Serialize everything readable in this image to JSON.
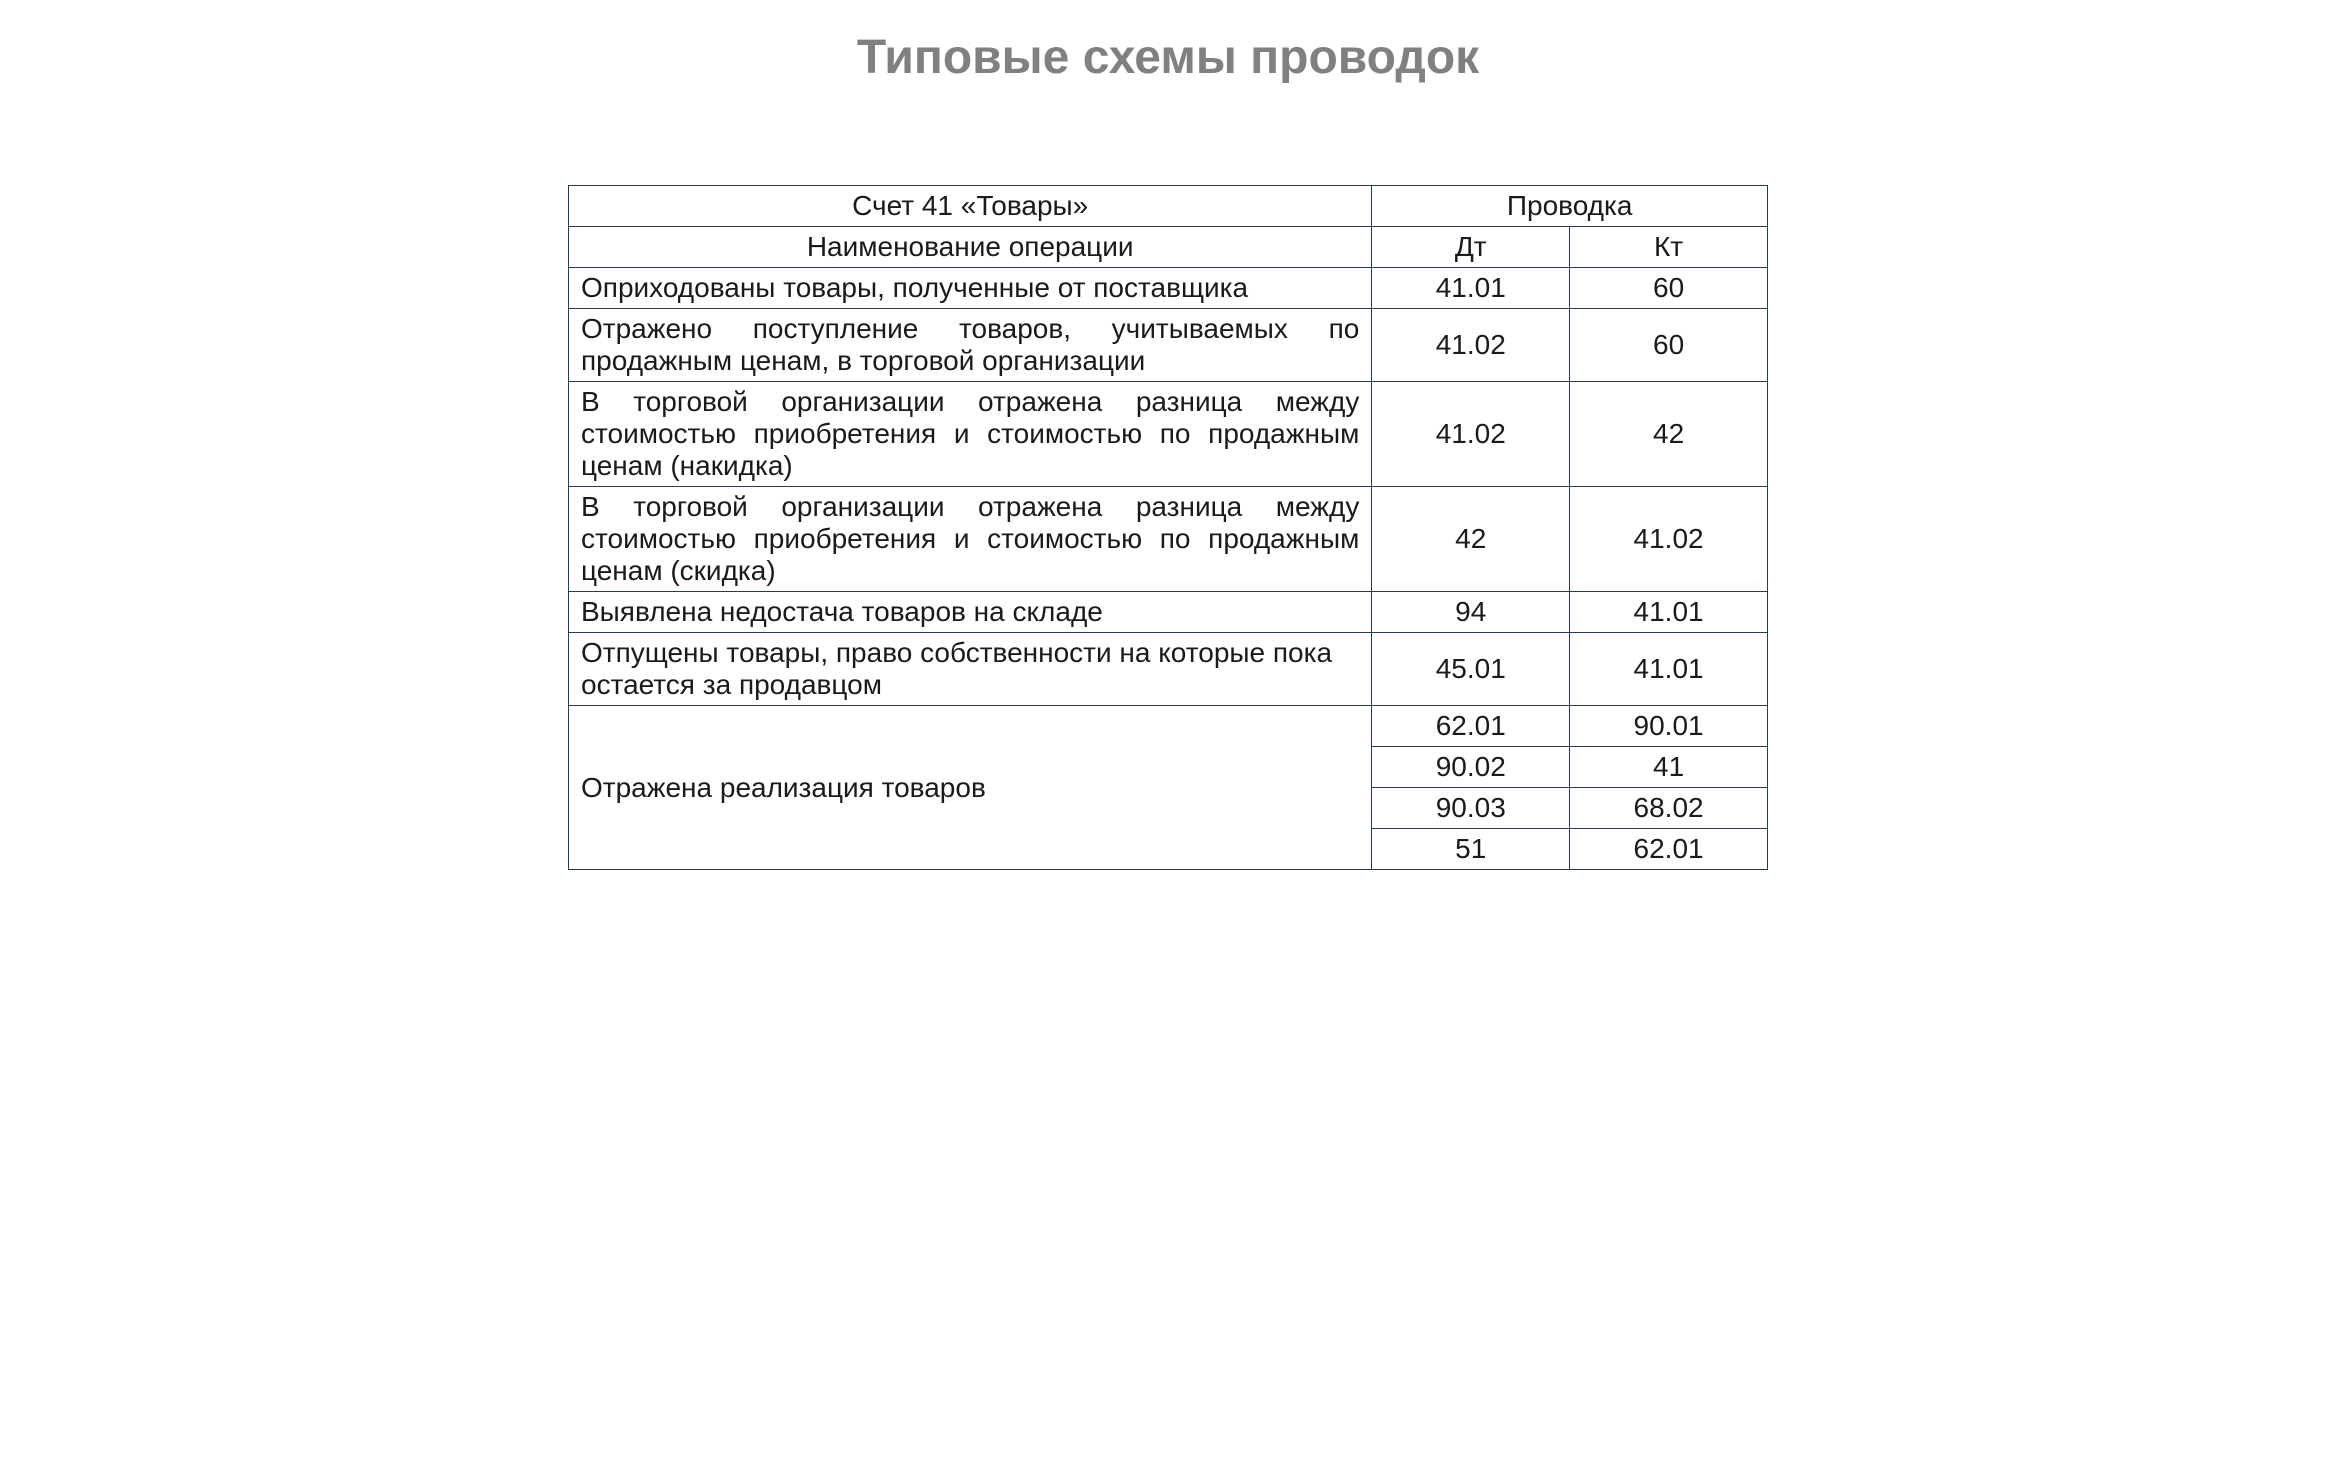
{
  "title": "Типовые схемы проводок",
  "table": {
    "header": {
      "account_title": "Счет 41 «Товары»",
      "operation_label": "Наименование операции",
      "posting_label": "Проводка",
      "dt_label": "Дт",
      "kt_label": "Кт"
    },
    "rows": [
      {
        "operation": "Оприходованы товары, полученные от поставщика",
        "justify": false,
        "entries": [
          {
            "dt": "41.01",
            "kt": "60"
          }
        ]
      },
      {
        "operation": "Отражено поступление товаров, учитываемых по продажным ценам, в торговой организации",
        "justify": true,
        "entries": [
          {
            "dt": "41.02",
            "kt": "60"
          }
        ]
      },
      {
        "operation": "В торговой организации отражена разница между стоимостью приобретения и стоимостью по продажным ценам (накидка)",
        "justify": true,
        "entries": [
          {
            "dt": "41.02",
            "kt": "42"
          }
        ]
      },
      {
        "operation": "В торговой организации отражена разница между стоимостью приобретения и стоимостью по продажным ценам (скидка)",
        "justify": true,
        "entries": [
          {
            "dt": "42",
            "kt": "41.02"
          }
        ]
      },
      {
        "operation": "Выявлена недостача товаров на складе",
        "justify": false,
        "entries": [
          {
            "dt": "94",
            "kt": "41.01"
          }
        ]
      },
      {
        "operation": "Отпущены товары, право собственности на которые пока остается за продавцом",
        "justify": false,
        "entries": [
          {
            "dt": "45.01",
            "kt": "41.01"
          }
        ]
      },
      {
        "operation": "Отражена реализация товаров",
        "justify": false,
        "entries": [
          {
            "dt": "62.01",
            "kt": "90.01"
          },
          {
            "dt": "90.02",
            "kt": "41"
          },
          {
            "dt": "90.03",
            "kt": "68.02"
          },
          {
            "dt": "51",
            "kt": "62.01"
          }
        ]
      }
    ],
    "styling": {
      "border_color": "#2a3a4a",
      "text_color": "#1a1a1a",
      "title_color": "#808080",
      "background_color": "#ffffff",
      "font_size_body": 28,
      "font_size_title": 48,
      "col_widths": {
        "operation": "67%",
        "dt": "16.5%",
        "kt": "16.5%"
      }
    }
  }
}
